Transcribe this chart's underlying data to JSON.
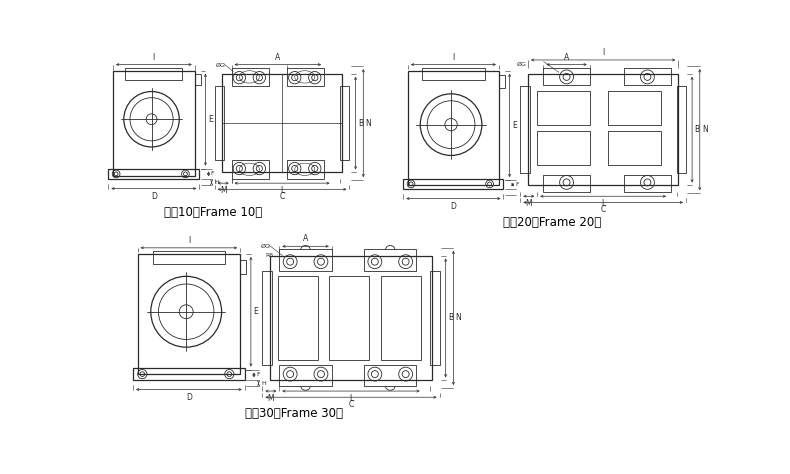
{
  "bg_color": "#ffffff",
  "lc": "#2a2a2a",
  "dc": "#2a2a2a",
  "label10": "机座10（Frame 10）",
  "label20": "机座20（Frame 20）",
  "label30": "机座30（Frame 30）",
  "fs_label": 8.5,
  "fs_dim": 5.5,
  "fs_dim_small": 4.5
}
